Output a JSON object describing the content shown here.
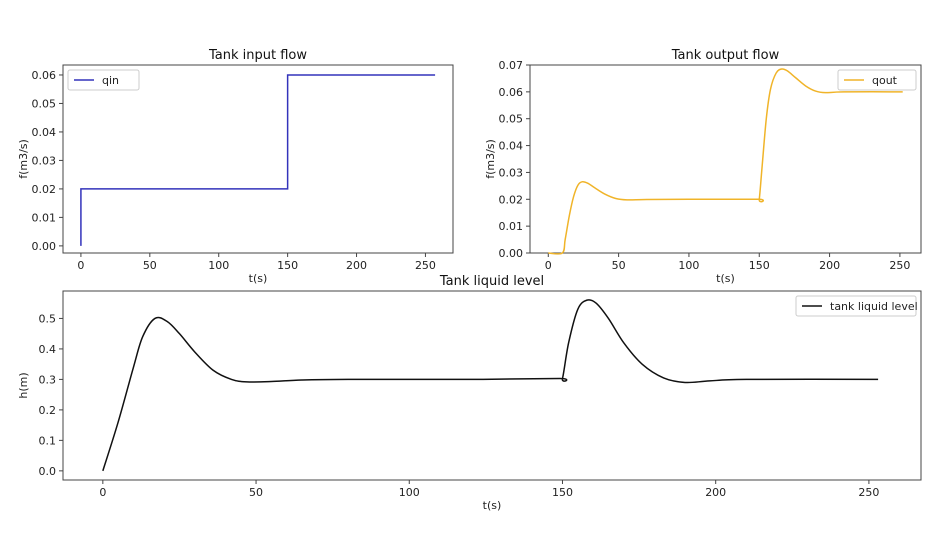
{
  "chart_data": [
    {
      "type": "line",
      "title": "Tank input flow",
      "xlabel": "t(s)",
      "ylabel": "f(m3/s)",
      "xlim": [
        -13,
        270
      ],
      "ylim": [
        -0.0025,
        0.0635
      ],
      "xticks": [
        0,
        50,
        100,
        150,
        200,
        250
      ],
      "yticks": [
        0.0,
        0.01,
        0.02,
        0.03,
        0.04,
        0.05,
        0.06
      ],
      "ytick_labels": [
        "0.00",
        "0.01",
        "0.02",
        "0.03",
        "0.04",
        "0.05",
        "0.06"
      ],
      "legend_position": "top-left",
      "smooth": false,
      "series": [
        {
          "name": "qin",
          "color": "#3333bb",
          "x": [
            0,
            0,
            150,
            150,
            257
          ],
          "y": [
            0,
            0.02,
            0.02,
            0.06,
            0.06
          ]
        }
      ]
    },
    {
      "type": "line",
      "title": "Tank output flow",
      "xlabel": "t(s)",
      "ylabel": "f(m3/s)",
      "xlim": [
        -13,
        265
      ],
      "ylim": [
        0,
        0.07
      ],
      "xticks": [
        0,
        50,
        100,
        150,
        200,
        250
      ],
      "yticks": [
        0.0,
        0.01,
        0.02,
        0.03,
        0.04,
        0.05,
        0.06,
        0.07
      ],
      "ytick_labels": [
        "0.00",
        "0.01",
        "0.02",
        "0.03",
        "0.04",
        "0.05",
        "0.06",
        "0.07"
      ],
      "legend_position": "top-right",
      "smooth": true,
      "series": [
        {
          "name": "qout",
          "color": "#f0b429",
          "x": [
            0,
            10,
            12,
            15,
            18,
            21,
            24,
            28,
            33,
            40,
            48,
            56,
            70,
            100,
            149,
            150,
            152,
            155,
            158,
            162,
            166,
            170,
            176,
            183,
            190,
            197,
            210,
            252
          ],
          "y": [
            0,
            0,
            0.005,
            0.014,
            0.021,
            0.0252,
            0.0265,
            0.026,
            0.0243,
            0.022,
            0.0203,
            0.0198,
            0.0199,
            0.02,
            0.02,
            0.02,
            0.032,
            0.05,
            0.061,
            0.067,
            0.0685,
            0.0678,
            0.0652,
            0.0622,
            0.0603,
            0.0597,
            0.06,
            0.06
          ]
        }
      ]
    },
    {
      "type": "line",
      "title": "Tank liquid level",
      "xlabel": "t(s)",
      "ylabel": "h(m)",
      "xlim": [
        -13,
        267
      ],
      "ylim": [
        -0.03,
        0.59
      ],
      "xticks": [
        0,
        50,
        100,
        150,
        200,
        250
      ],
      "yticks": [
        0.0,
        0.1,
        0.2,
        0.3,
        0.4,
        0.5
      ],
      "ytick_labels": [
        "0.0",
        "0.1",
        "0.2",
        "0.3",
        "0.4",
        "0.5"
      ],
      "legend_position": "top-right",
      "smooth": true,
      "series": [
        {
          "name": "tank liquid level",
          "color": "#111111",
          "x": [
            0,
            5,
            10,
            13,
            17,
            21,
            25,
            30,
            36,
            42,
            47,
            55,
            65,
            80,
            120,
            149,
            150,
            152,
            155,
            158,
            161,
            165,
            170,
            176,
            183,
            190,
            198,
            210,
            253
          ],
          "y": [
            0,
            0.16,
            0.34,
            0.44,
            0.5,
            0.49,
            0.45,
            0.39,
            0.33,
            0.3,
            0.292,
            0.293,
            0.298,
            0.3,
            0.3,
            0.303,
            0.303,
            0.42,
            0.53,
            0.56,
            0.55,
            0.5,
            0.42,
            0.35,
            0.305,
            0.29,
            0.295,
            0.3,
            0.3
          ]
        }
      ]
    }
  ]
}
